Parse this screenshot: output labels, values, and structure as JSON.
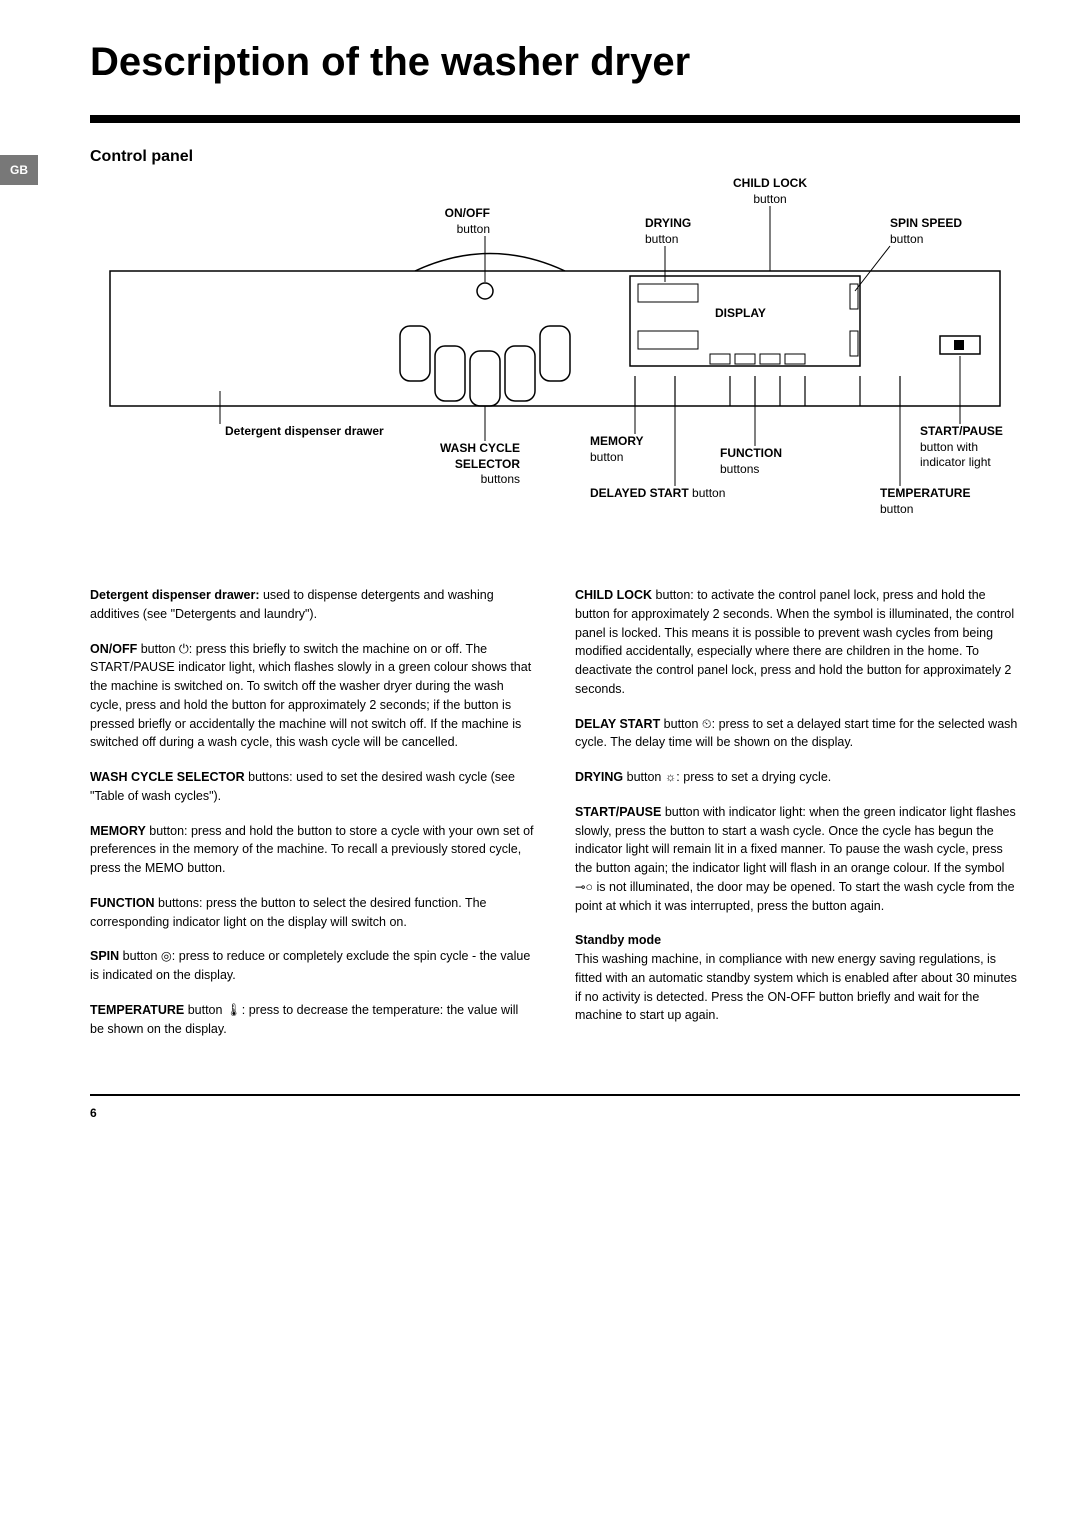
{
  "lang_tab": "GB",
  "title": "Description of the washer dryer",
  "panel_heading": "Control panel",
  "labels": {
    "onoff": {
      "title": "ON/OFF",
      "sub": "button"
    },
    "child_lock": {
      "title": "CHILD LOCK",
      "sub": "button"
    },
    "drying": {
      "title": "DRYING",
      "sub": "button"
    },
    "spin_speed": {
      "title": "SPIN SPEED",
      "sub": "button"
    },
    "display": "DISPLAY",
    "drawer": "Detergent dispenser drawer",
    "wash_cycle": {
      "title": "WASH CYCLE SELECTOR",
      "sub": "buttons"
    },
    "memory": {
      "title": "MEMORY",
      "sub": "button"
    },
    "function": {
      "title": "FUNCTION",
      "sub": "buttons"
    },
    "start_pause": {
      "title": "START/PAUSE",
      "sub": "button with indicator light"
    },
    "delayed_start": {
      "title": "DELAYED START",
      "sub": " button"
    },
    "temperature": {
      "title": "TEMPERATURE",
      "sub": "button"
    }
  },
  "body": {
    "left": [
      {
        "bold": "Detergent dispenser drawer:",
        "text": " used to dispense detergents and washing additives (see \"Detergents and laundry\")."
      },
      {
        "bold": "ON/OFF",
        "text": " button ⏻: press this briefly to switch the machine on or off. The START/PAUSE indicator light, which flashes slowly in a green colour shows that the machine is switched on. To switch off the washer dryer during the wash cycle, press and hold the button for approximately 2 seconds; if the button is pressed briefly or accidentally the machine will not switch off. If the machine is switched off during a wash cycle, this wash cycle will be cancelled."
      },
      {
        "bold": "WASH CYCLE SELECTOR",
        "text": " buttons: used to set the desired wash cycle (see \"Table of wash cycles\")."
      },
      {
        "bold": "MEMORY",
        "text": " button: press and hold the button to store a cycle with your own set of preferences in the memory of the machine. To recall a previously stored cycle, press the MEMO button."
      },
      {
        "bold": "FUNCTION",
        "text": " buttons: press the button to select the desired function. The corresponding indicator light on the display will switch on."
      },
      {
        "bold": "SPIN",
        "text": " button ◎: press to reduce or completely exclude the spin cycle - the value is indicated on the display."
      },
      {
        "bold": "TEMPERATURE",
        "text": " button 🌡: press to decrease the temperature: the value will be shown on the display."
      }
    ],
    "right": [
      {
        "bold": "CHILD LOCK",
        "text": " button: to activate the control panel lock, press and hold the button for approximately 2 seconds. When the symbol is illuminated, the control panel is locked. This means it is possible to prevent wash cycles from being modified accidentally, especially where there are children in the home. To deactivate the control panel lock, press and hold the button for approximately 2 seconds."
      },
      {
        "bold": "DELAY START",
        "text": " button ⏲: press to set a delayed start time for the selected wash cycle. The delay time will be shown on the display."
      },
      {
        "bold": "DRYING",
        "text": " button ☼: press to set a drying cycle."
      },
      {
        "bold": "START/PAUSE",
        "text": " button with indicator light: when the green indicator light flashes slowly, press the button to start a wash cycle. Once the cycle has begun the indicator light will remain lit in a fixed manner. To pause the wash cycle, press the button again; the indicator light will flash in an orange colour. If the symbol ⊸○ is not illuminated, the door may be opened. To start the wash cycle from the point at which it was interrupted, press the button again."
      },
      {
        "bold": "Standby mode",
        "text_sep": true,
        "text": "This washing machine, in compliance with new energy saving regulations, is fitted with an automatic standby system which is enabled after about 30 minutes if no activity is detected. Press the ON-OFF button briefly and wait for the machine to start up again."
      }
    ]
  },
  "page_number": "6",
  "colors": {
    "rule": "#000000",
    "tab_bg": "#787878",
    "tab_fg": "#ffffff"
  }
}
